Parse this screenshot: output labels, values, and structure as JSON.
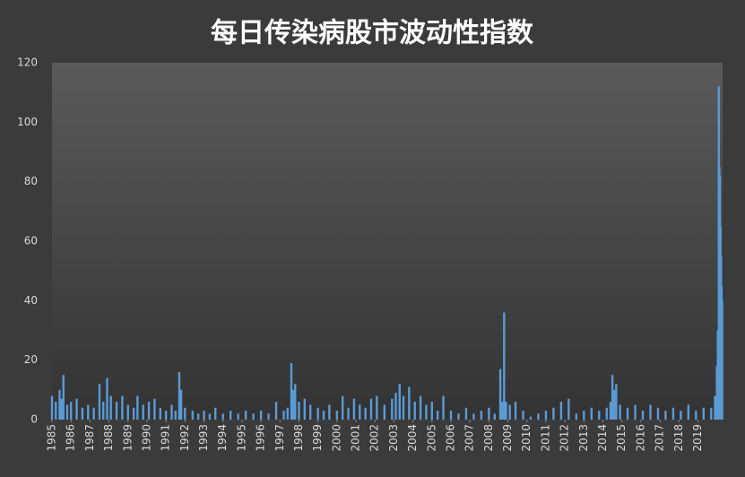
{
  "chart_data": {
    "type": "bar",
    "title": "每日传染病股市波动性指数",
    "x": [
      1985.0,
      1985.2,
      1985.4,
      1985.5,
      1985.6,
      1985.8,
      1986.0,
      1986.3,
      1986.6,
      1986.9,
      1987.2,
      1987.5,
      1987.7,
      1987.9,
      1988.1,
      1988.4,
      1988.7,
      1989.0,
      1989.3,
      1989.5,
      1989.8,
      1990.1,
      1990.4,
      1990.7,
      1991.0,
      1991.3,
      1991.5,
      1991.7,
      1991.8,
      1992.0,
      1992.4,
      1992.7,
      1993.0,
      1993.3,
      1993.6,
      1994.0,
      1994.4,
      1994.8,
      1995.2,
      1995.6,
      1996.0,
      1996.4,
      1996.8,
      1997.2,
      1997.4,
      1997.6,
      1997.7,
      1997.8,
      1998.0,
      1998.3,
      1998.6,
      1999.0,
      1999.3,
      1999.6,
      2000.0,
      2000.3,
      2000.6,
      2000.9,
      2001.2,
      2001.5,
      2001.8,
      2002.1,
      2002.5,
      2002.9,
      2003.1,
      2003.3,
      2003.5,
      2003.8,
      2004.1,
      2004.4,
      2004.7,
      2005.0,
      2005.3,
      2005.6,
      2006.0,
      2006.4,
      2006.8,
      2007.2,
      2007.6,
      2008.0,
      2008.3,
      2008.6,
      2008.7,
      2008.8,
      2008.9,
      2009.1,
      2009.4,
      2009.8,
      2010.2,
      2010.6,
      2011.0,
      2011.4,
      2011.8,
      2012.2,
      2012.6,
      2013.0,
      2013.4,
      2013.8,
      2014.2,
      2014.4,
      2014.5,
      2014.6,
      2014.7,
      2014.9,
      2015.3,
      2015.7,
      2016.1,
      2016.5,
      2016.9,
      2017.3,
      2017.7,
      2018.1,
      2018.5,
      2018.9,
      2019.3,
      2019.7,
      2019.9,
      2020.0,
      2020.05,
      2020.1,
      2020.13,
      2020.16,
      2020.19,
      2020.22,
      2020.25,
      2020.28
    ],
    "values": [
      8,
      6,
      10,
      7,
      15,
      5,
      6,
      7,
      4,
      5,
      4,
      12,
      6,
      14,
      8,
      6,
      8,
      5,
      4,
      8,
      5,
      6,
      7,
      4,
      3,
      5,
      3,
      16,
      10,
      4,
      3,
      2,
      3,
      2,
      4,
      2,
      3,
      2,
      3,
      2,
      3,
      2,
      6,
      3,
      4,
      19,
      10,
      12,
      6,
      7,
      5,
      4,
      3,
      5,
      3,
      8,
      4,
      7,
      5,
      4,
      7,
      8,
      5,
      7,
      9,
      12,
      8,
      11,
      6,
      8,
      5,
      6,
      3,
      8,
      3,
      2,
      4,
      2,
      3,
      4,
      2,
      17,
      6,
      36,
      6,
      5,
      6,
      3,
      1,
      2,
      3,
      4,
      6,
      7,
      2,
      3,
      4,
      3,
      4,
      6,
      15,
      10,
      12,
      5,
      4,
      5,
      3,
      5,
      4,
      3,
      4,
      3,
      5,
      3,
      4,
      4,
      8,
      18,
      30,
      112,
      85,
      82,
      65,
      55,
      45,
      40
    ],
    "color": "#5b9bd5",
    "xlim": [
      1985,
      2020.3
    ],
    "xticks": [
      1985,
      1986,
      1987,
      1988,
      1989,
      1990,
      1991,
      1992,
      1993,
      1994,
      1995,
      1996,
      1997,
      1998,
      1999,
      2000,
      2001,
      2002,
      2003,
      2004,
      2005,
      2006,
      2007,
      2008,
      2009,
      2010,
      2011,
      2012,
      2013,
      2014,
      2015,
      2016,
      2017,
      2018,
      2019
    ],
    "ylim": [
      0,
      120
    ],
    "yticks": [
      0,
      20,
      40,
      60,
      80,
      100,
      120
    ],
    "grid": false
  }
}
